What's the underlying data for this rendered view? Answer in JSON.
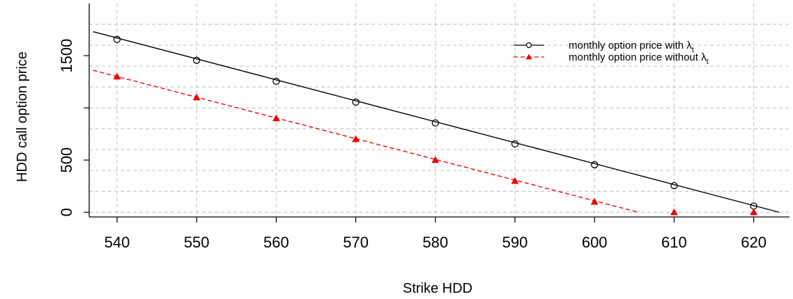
{
  "chart_data": {
    "type": "line",
    "xlabel": "Strike HDD",
    "ylabel": "HDD call option price",
    "xlim": [
      536.5,
      624.5
    ],
    "ylim": [
      -45,
      2000
    ],
    "x_ticks": [
      "540",
      "550",
      "560",
      "570",
      "580",
      "590",
      "600",
      "610",
      "620"
    ],
    "y_ticks": [
      "0",
      "500",
      "1500"
    ],
    "grid": true,
    "legend_position": "top-right",
    "series": [
      {
        "name": "monthly option price with λ",
        "subscript": "t",
        "color": "#000000",
        "line_style": "solid",
        "marker": "open-circle",
        "x": [
          540,
          550,
          560,
          570,
          580,
          590,
          600,
          610,
          620
        ],
        "values": [
          1655,
          1455,
          1255,
          1055,
          855,
          655,
          455,
          255,
          60
        ],
        "line": [
          [
            537,
            1730
          ],
          [
            623.2,
            0
          ]
        ]
      },
      {
        "name": "monthly option price without λ",
        "subscript": "t",
        "color": "#ee0000",
        "line_style": "dashed",
        "marker": "filled-triangle",
        "x": [
          540,
          550,
          560,
          570,
          580,
          590,
          600,
          610,
          620
        ],
        "values": [
          1300,
          1100,
          900,
          700,
          500,
          300,
          100,
          0,
          0
        ],
        "line": [
          [
            537,
            1360
          ],
          [
            605.5,
            0
          ]
        ]
      }
    ]
  }
}
